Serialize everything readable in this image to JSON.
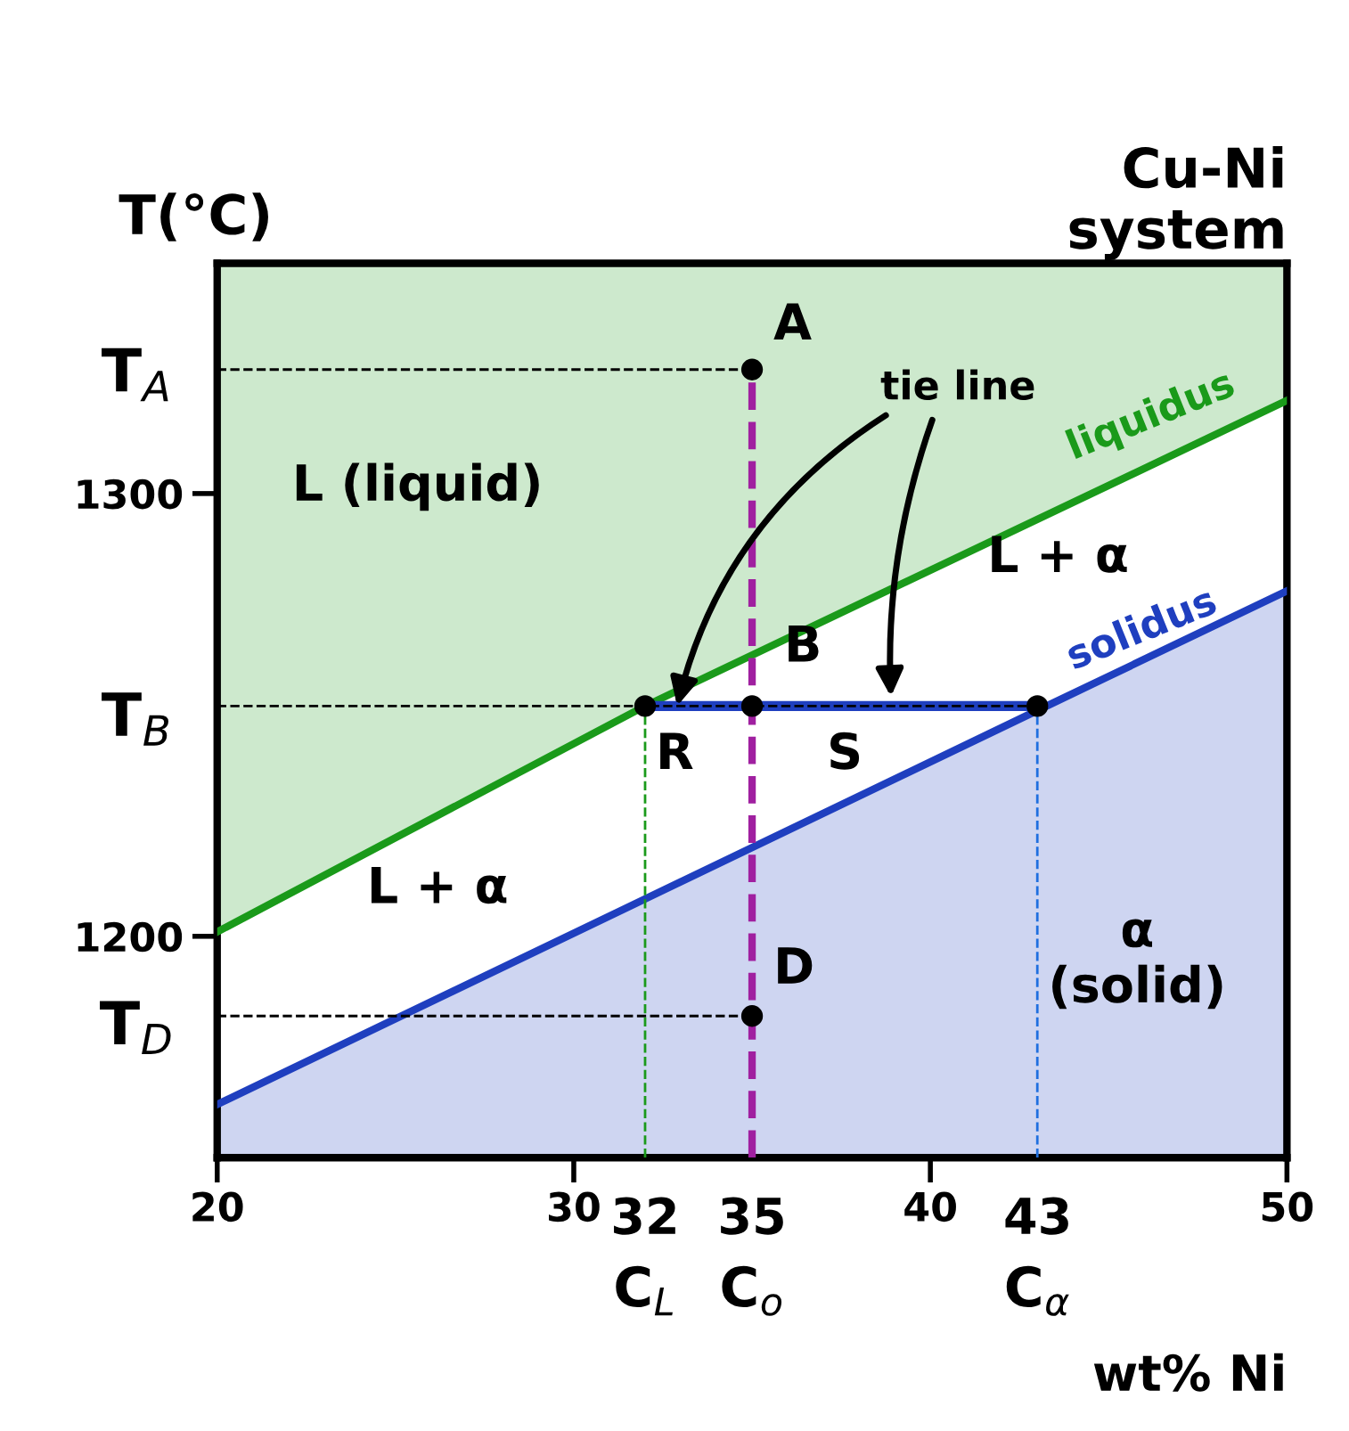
{
  "chart_data": {
    "type": "line",
    "title": "Cu-Ni\nsystem",
    "xlabel": "wt% Ni",
    "ylabel": "T(°C)",
    "xlim": [
      20,
      50
    ],
    "ylim": [
      1150,
      1352
    ],
    "xticks": [
      20,
      30,
      40,
      50
    ],
    "yticks": [
      1200,
      1300
    ],
    "grid": false,
    "legend": false,
    "series": [
      {
        "name": "liquidus",
        "color": "#1a9a1a",
        "x": [
          20,
          32,
          50
        ],
        "values": [
          1201,
          1252,
          1321
        ],
        "lower": [
          1201,
          1252,
          1321
        ],
        "upper": [
          1352,
          1352,
          1352
        ]
      },
      {
        "name": "solidus",
        "color": "#1f3fbf",
        "x": [
          20,
          43,
          50
        ],
        "values": [
          1162,
          1251,
          1278
        ],
        "lower": [
          1150,
          1150,
          1150
        ],
        "upper": [
          1162,
          1251,
          1278
        ]
      },
      {
        "color": "#1f3fbf",
        "x": [
          32,
          43
        ],
        "values": [
          1252,
          1252
        ],
        "line_style": "solid"
      },
      {
        "color": "#a020a0",
        "x": [
          35,
          35
        ],
        "values": [
          1150,
          1328
        ],
        "line_style": "dashed"
      },
      {
        "color": "#000000",
        "x": [
          20,
          35
        ],
        "values": [
          1328,
          1328
        ],
        "line_style": "dashed"
      },
      {
        "color": "#000000",
        "x": [
          20,
          43
        ],
        "values": [
          1252,
          1252
        ],
        "line_style": "dashed"
      },
      {
        "color": "#000000",
        "x": [
          20,
          35
        ],
        "values": [
          1182,
          1182
        ],
        "line_style": "dashed"
      },
      {
        "color": "#1a9a1a",
        "x": [
          32,
          32
        ],
        "values": [
          1150,
          1252
        ],
        "line_style": "dashed"
      },
      {
        "color": "#1f6fdf",
        "x": [
          43,
          43
        ],
        "values": [
          1150,
          1252
        ],
        "line_style": "dashed"
      },
      {
        "type": "scatter",
        "color": "#000000",
        "x": [
          35,
          32,
          35,
          43,
          35
        ],
        "values": [
          1328,
          1252,
          1252,
          1252,
          1182
        ],
        "marker": "circle"
      }
    ],
    "annotations": [
      "A",
      "B",
      "D",
      "R",
      "S",
      "L (liquid)",
      "L + α",
      "L + α",
      "α\n(solid)",
      {
        "text": "tie line",
        "x": 32.9,
        "y": 1252
      },
      "T$_{A}$",
      "T$_{B}$",
      "T$_{D}$",
      "32",
      "35",
      "43",
      "C$_{L}$",
      "C$_{o}$",
      "C$_{α}$"
    ]
  }
}
